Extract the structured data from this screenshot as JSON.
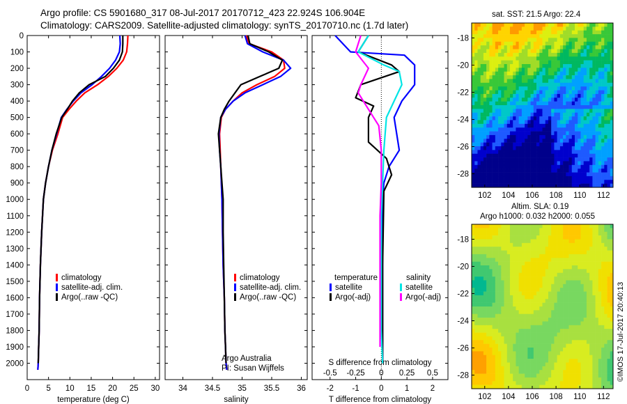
{
  "header": {
    "line1": "Argo profile: CS 5901680_317 08-Jul-2017 20170712_423 22.924S 106.904E",
    "line2": "Climatology: CARS2009. Satellite-adjusted climatology: synTS_20170710.nc (1.7d later)"
  },
  "right": {
    "sst_title": "sat. SST: 21.5 Argo: 22.4",
    "sla_title1": "Altim. SLA: 0.19",
    "sla_title2": "Argo h1000: 0.032 h2000: 0.055",
    "credit": "©IMOS 17-Jul-2017 20:40:13"
  },
  "colors": {
    "climatology": "#ff0000",
    "satellite": "#0000ff",
    "argo": "#000000",
    "sal_satellite": "#00e5e5",
    "sal_argo": "#ff00ff"
  },
  "chart_data": [
    {
      "type": "line",
      "panel": "temperature",
      "xlabel": "temperature (deg C)",
      "ylabel": "",
      "xlim": [
        0,
        31
      ],
      "ylim": [
        2100,
        0
      ],
      "xticks": [
        0,
        5,
        10,
        15,
        20,
        25,
        30
      ],
      "yticks": [
        0,
        100,
        200,
        300,
        400,
        500,
        600,
        700,
        800,
        900,
        1000,
        1100,
        1200,
        1300,
        1400,
        1500,
        1600,
        1700,
        1800,
        1900,
        2000
      ],
      "legend": [
        "climatology",
        "satellite-adj. clim.",
        "Argo(..raw -QC)"
      ],
      "series": [
        {
          "name": "climatology",
          "color": "#ff0000",
          "x": [
            23.6,
            23.5,
            23.3,
            22.5,
            21.0,
            19.0,
            16.5,
            13.5,
            11.5,
            9.8,
            8.3,
            7.2,
            5.9,
            5.0,
            4.3,
            3.8,
            3.4,
            3.1,
            2.9,
            2.8,
            2.7,
            2.6,
            2.5
          ],
          "y": [
            0,
            50,
            100,
            150,
            200,
            250,
            300,
            350,
            400,
            450,
            500,
            600,
            700,
            800,
            900,
            1000,
            1200,
            1400,
            1600,
            1800,
            1900,
            2000,
            2040
          ]
        },
        {
          "name": "satellite-adj. clim.",
          "color": "#0000ff",
          "x": [
            21.7,
            21.8,
            21.6,
            20.7,
            19.3,
            17.4,
            15.2,
            12.6,
            10.8,
            9.3,
            8.0,
            6.9,
            5.8,
            5.0,
            4.3,
            3.8,
            3.4,
            3.1,
            2.9,
            2.8,
            2.7,
            2.6,
            2.5
          ],
          "y": [
            0,
            50,
            100,
            150,
            200,
            250,
            300,
            350,
            400,
            450,
            500,
            600,
            700,
            800,
            900,
            1000,
            1200,
            1400,
            1600,
            1800,
            1900,
            2000,
            2040
          ]
        },
        {
          "name": "Argo(..raw -QC)",
          "color": "#000000",
          "x": [
            22.4,
            22.4,
            22.3,
            21.6,
            20.2,
            18.3,
            14.5,
            12.2,
            10.6,
            9.4,
            8.1,
            6.8,
            5.8,
            5.0,
            4.3,
            3.8,
            3.4,
            3.1,
            2.9,
            2.8,
            2.7,
            2.6
          ],
          "y": [
            0,
            50,
            100,
            150,
            200,
            250,
            300,
            350,
            400,
            450,
            500,
            600,
            700,
            800,
            900,
            1000,
            1200,
            1400,
            1600,
            1800,
            1900,
            2000
          ]
        }
      ]
    },
    {
      "type": "line",
      "panel": "salinity",
      "xlabel": "salinity",
      "ylabel": "",
      "xlim": [
        33.7,
        36.1
      ],
      "ylim": [
        2100,
        0
      ],
      "xticks": [
        34,
        34.5,
        35,
        35.5,
        36
      ],
      "legend": [
        "climatology",
        "satellite-adj. clim.",
        "Argo(..raw -QC)"
      ],
      "annotations": [
        "Argo Australia",
        "PI: Susan Wijffels"
      ],
      "series": [
        {
          "name": "climatology",
          "color": "#ff0000",
          "x": [
            35.07,
            35.12,
            35.5,
            35.7,
            35.72,
            35.55,
            35.25,
            35.0,
            34.85,
            34.72,
            34.65,
            34.62,
            34.63,
            34.64,
            34.66,
            34.67,
            34.68,
            34.7,
            34.71,
            34.72,
            34.73,
            34.74
          ],
          "y": [
            0,
            50,
            100,
            150,
            200,
            250,
            300,
            350,
            400,
            450,
            500,
            600,
            700,
            800,
            1000,
            1200,
            1400,
            1600,
            1800,
            1900,
            2000,
            2040
          ]
        },
        {
          "name": "satellite-adj. clim.",
          "color": "#0000ff",
          "x": [
            35.05,
            35.09,
            35.35,
            35.7,
            35.82,
            35.65,
            35.35,
            35.05,
            34.85,
            34.72,
            34.64,
            34.61,
            34.62,
            34.64,
            34.66,
            34.67,
            34.68,
            34.7,
            34.71,
            34.72,
            34.73,
            34.74
          ],
          "y": [
            0,
            50,
            100,
            150,
            200,
            250,
            300,
            350,
            400,
            450,
            500,
            600,
            700,
            800,
            1000,
            1200,
            1400,
            1600,
            1800,
            1900,
            2000,
            2040
          ]
        },
        {
          "name": "Argo(..raw -QC)",
          "color": "#000000",
          "x": [
            35.1,
            35.13,
            35.45,
            35.68,
            35.62,
            35.3,
            34.98,
            34.88,
            34.78,
            34.7,
            34.64,
            34.6,
            34.62,
            34.64,
            34.68,
            34.68,
            34.69,
            34.7,
            34.71,
            34.72,
            34.73
          ],
          "y": [
            0,
            50,
            100,
            150,
            200,
            250,
            300,
            350,
            400,
            450,
            500,
            600,
            700,
            800,
            1000,
            1200,
            1400,
            1600,
            1800,
            1900,
            2000
          ]
        }
      ]
    },
    {
      "type": "line",
      "panel": "difference",
      "xlabel": "T difference from climatology",
      "xlabel_top": "S difference from climatology",
      "xlim": [
        -2.7,
        2.6
      ],
      "ylim": [
        2100,
        0
      ],
      "xticks": [
        -2,
        -1,
        0,
        1,
        2
      ],
      "xticks_s": [
        -0.5,
        -0.25,
        0,
        0.25,
        0.5
      ],
      "legend": [
        "temperature",
        "satellite",
        "Argo(-adj)",
        "salinity",
        "satellite",
        "Argo(-adj)"
      ],
      "series": [
        {
          "name": "temperature satellite",
          "color": "#0000ff",
          "x": [
            -1.8,
            -1.2,
            0.9,
            1.3,
            1.3,
            0.8,
            0.5,
            0.6,
            0.7,
            0.3,
            0.1,
            0.05,
            0.05,
            0.05,
            0.05
          ],
          "y": [
            0,
            100,
            120,
            180,
            300,
            400,
            500,
            600,
            700,
            800,
            900,
            1000,
            1400,
            1800,
            2000
          ]
        },
        {
          "name": "temperature Argo(-adj)",
          "color": "#000000",
          "x": [
            -0.5,
            -0.9,
            0.4,
            0.7,
            -0.8,
            -1.0,
            -0.3,
            -0.5,
            -0.5,
            0.2,
            0.4,
            0.1,
            0.05,
            0.05,
            0.05
          ],
          "y": [
            0,
            100,
            180,
            220,
            300,
            380,
            430,
            500,
            650,
            750,
            850,
            950,
            1400,
            1800,
            2000
          ]
        },
        {
          "name": "salinity satellite",
          "color": "#00e5e5",
          "x": [
            -0.5,
            -0.9,
            0.1,
            0.7,
            0.8,
            0.5,
            0.2,
            0.1,
            0.05,
            0.0,
            0.0,
            0.0,
            0.05
          ],
          "y": [
            0,
            100,
            180,
            220,
            300,
            400,
            500,
            700,
            900,
            1100,
            1400,
            1800,
            2000
          ]
        },
        {
          "name": "salinity Argo(-adj)",
          "color": "#ff00ff",
          "x": [
            -0.8,
            -1.0,
            -0.5,
            -0.8,
            -0.9,
            -0.5,
            -0.1,
            0.0,
            0.0,
            -0.05,
            -0.05,
            -0.05
          ],
          "y": [
            0,
            100,
            200,
            300,
            350,
            450,
            550,
            700,
            900,
            1100,
            1500,
            1900
          ]
        }
      ]
    },
    {
      "type": "heatmap",
      "panel": "sst_map",
      "title": "sat. SST: 21.5 Argo: 22.4",
      "xticks": [
        102,
        104,
        106,
        108,
        110,
        112
      ],
      "yticks": [
        -18,
        -20,
        -22,
        -24,
        -26,
        -28
      ],
      "xlim": [
        100.9,
        112.8
      ],
      "ylim": [
        -29.0,
        -16.9
      ]
    },
    {
      "type": "heatmap",
      "panel": "sla_map",
      "title": "Altim. SLA: 0.19",
      "subtitle": "Argo h1000: 0.032 h2000: 0.055",
      "xticks": [
        102,
        104,
        106,
        108,
        110,
        112
      ],
      "yticks": [
        -18,
        -20,
        -22,
        -24,
        -26,
        -28
      ],
      "xlim": [
        100.9,
        112.8
      ],
      "ylim": [
        -29.0,
        -16.9
      ]
    }
  ]
}
